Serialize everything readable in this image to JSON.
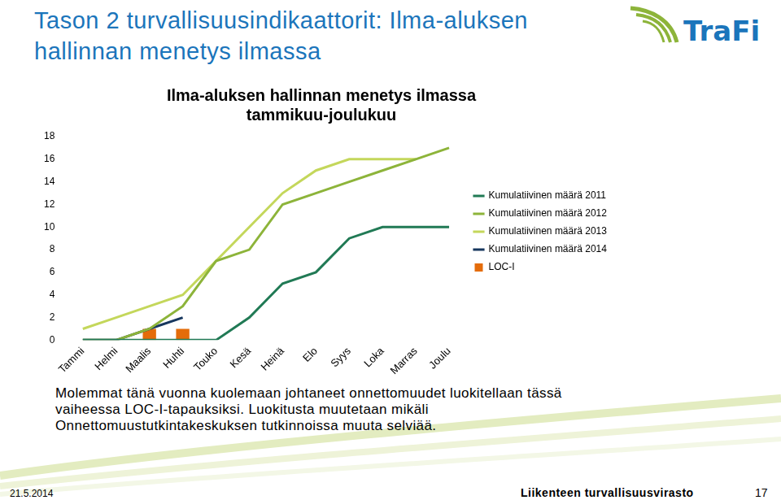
{
  "slide": {
    "title": [
      "Tason 2 turvallisuusindikaattorit: Ilma-aluksen",
      "hallinnan menetys ilmassa"
    ],
    "logo": "TraFi",
    "note": [
      "Molemmat tänä vuonna kuolemaan johtaneet onnettomuudet luokitellaan tässä",
      "vaiheessa LOC-I-tapauksiksi. Luokitusta muutetaan mikäli",
      "Onnettomuustutkintakeskuksen tutkinnoissa muuta selviää."
    ],
    "date": "21.5.2014",
    "footer": "Liikenteen turvallisuusvirasto",
    "page": "17"
  },
  "chart_data": {
    "type": "line",
    "title": [
      "Ilma-aluksen hallinnan menetys ilmassa",
      "tammikuu-joulukuu"
    ],
    "categories": [
      "Tammi",
      "Helmi",
      "Maalis",
      "Huhti",
      "Touko",
      "Kesä",
      "Heinä",
      "Elo",
      "Syys",
      "Loka",
      "Marras",
      "Joulu"
    ],
    "series": [
      {
        "name": "LOC-I",
        "type": "bar",
        "color": "#e46c0a",
        "values": [
          null,
          null,
          1,
          1,
          null,
          null,
          null,
          null,
          null,
          null,
          null,
          null
        ]
      },
      {
        "name": "Kumulatiivinen määrä 2014",
        "color": "#17375e",
        "values": [
          0,
          0,
          1,
          2,
          null,
          null,
          null,
          null,
          null,
          null,
          null,
          null
        ]
      },
      {
        "name": "Kumulatiivinen määrä 2013",
        "color": "#c4d75b",
        "values": [
          1,
          2,
          3,
          4,
          7,
          10,
          13,
          15,
          16,
          16,
          16,
          null
        ]
      },
      {
        "name": "Kumulatiivinen määrä 2012",
        "color": "#8db43a",
        "values": [
          0,
          0,
          1,
          3,
          7,
          8,
          12,
          13,
          14,
          15,
          16,
          17
        ]
      },
      {
        "name": "Kumulatiivinen määrä 2011",
        "color": "#217a55",
        "values": [
          0,
          0,
          0,
          0,
          0,
          2,
          5,
          6,
          9,
          10,
          10,
          10
        ]
      }
    ],
    "ylim": [
      0,
      18
    ],
    "yticks": [
      0,
      2,
      4,
      6,
      8,
      10,
      12,
      14,
      16,
      18
    ],
    "grid": false,
    "legend": "right"
  }
}
